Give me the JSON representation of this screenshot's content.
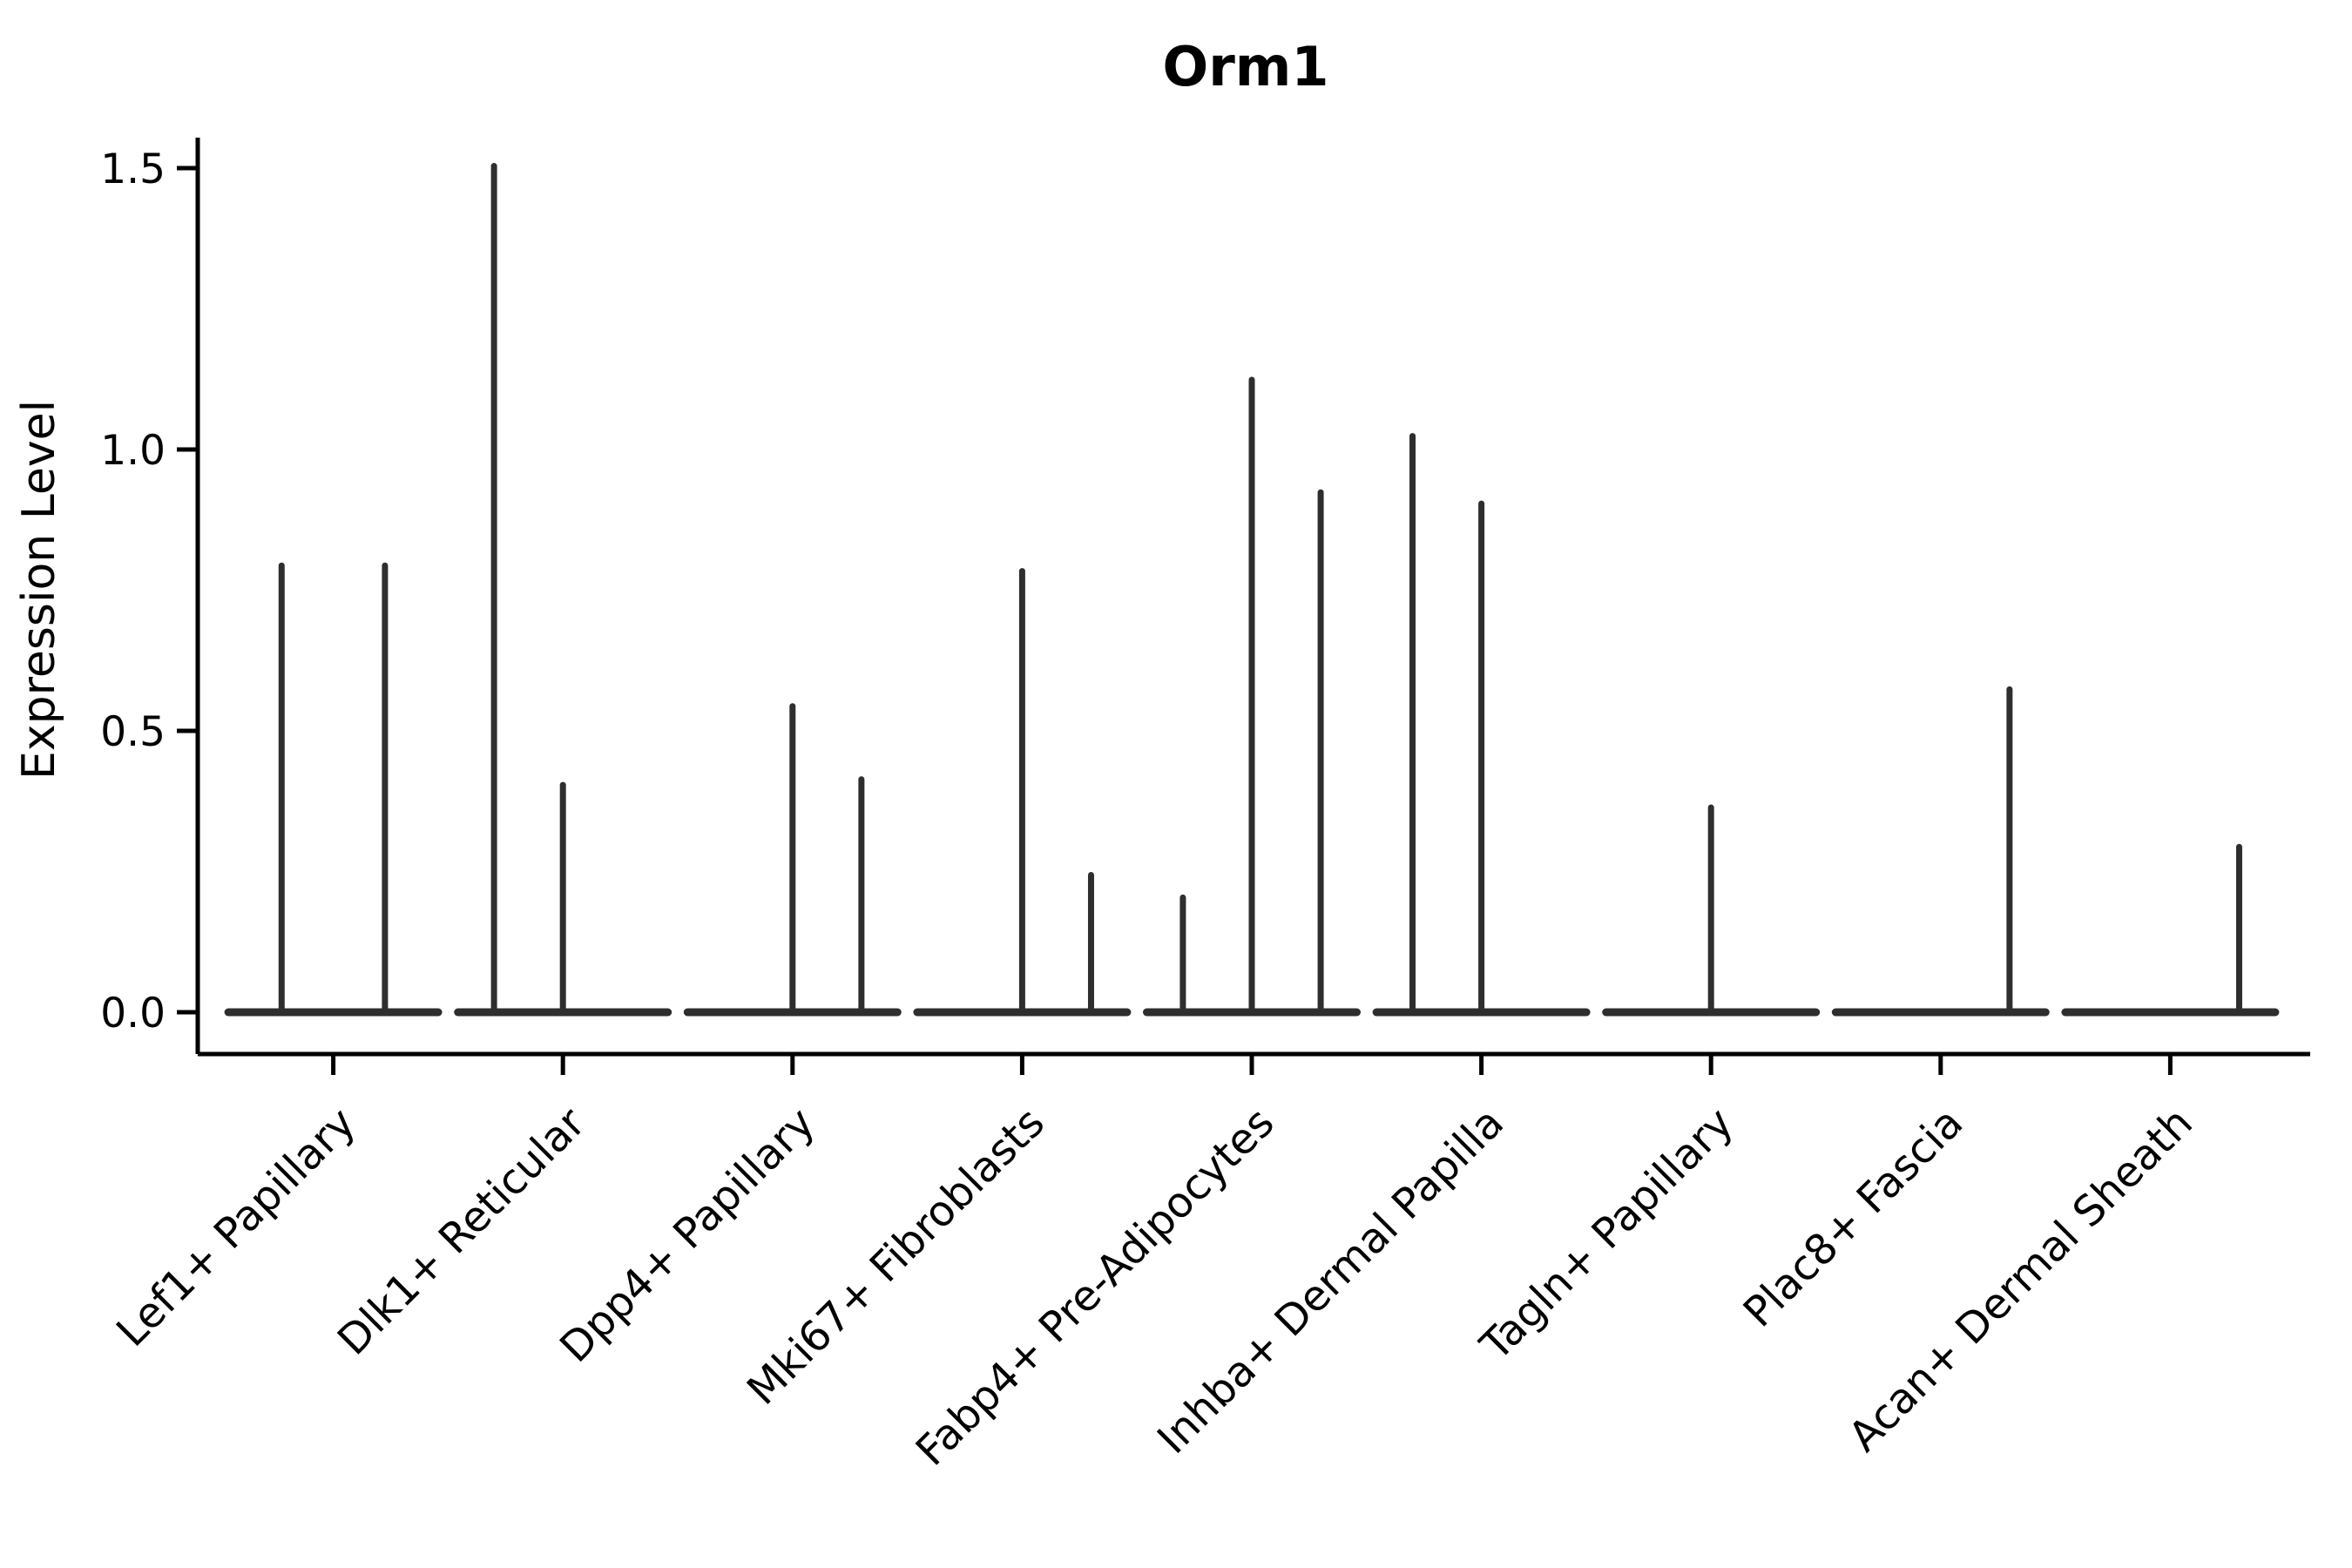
{
  "title": "Orm1",
  "chart_data": {
    "type": "violin",
    "title": "Orm1",
    "subtitle": "",
    "xlabel": "",
    "ylabel": "Expression Level",
    "ylim": [
      -0.08,
      1.57
    ],
    "yticks": [
      0.0,
      0.5,
      1.0,
      1.5
    ],
    "ytick_labels": [
      "0.0",
      "0.5",
      "1.0",
      "1.5"
    ],
    "xtick_rotation_deg": 45,
    "grid": "off",
    "legend_position": "none",
    "line_color": "#2e2e2e",
    "background_color": "#ffffff",
    "categories": [
      "Lef1+ Papillary",
      "Dlk1+ Reticular",
      "Dpp4+ Papillary",
      "Mki67+ Fibroblasts",
      "Fabp4+ Pre-Adipocytes",
      "Inhba+ Dermal Papilla",
      "Tagln+ Papillary",
      "Plac8+ Fascia",
      "Acan+ Dermal Sheath"
    ],
    "violins": [
      {
        "category": "Lef1+ Papillary",
        "spikes": [
          {
            "offset": -0.225,
            "peak": 0.8
          },
          {
            "offset": 0.225,
            "peak": 0.8
          }
        ]
      },
      {
        "category": "Dlk1+ Reticular",
        "spikes": [
          {
            "offset": -0.3,
            "peak": 1.51
          },
          {
            "offset": 0.0,
            "peak": 0.41
          }
        ]
      },
      {
        "category": "Dpp4+ Papillary",
        "spikes": [
          {
            "offset": 0.0,
            "peak": 0.55
          },
          {
            "offset": 0.3,
            "peak": 0.42
          }
        ]
      },
      {
        "category": "Mki67+ Fibroblasts",
        "spikes": [
          {
            "offset": 0.0,
            "peak": 0.79
          },
          {
            "offset": 0.3,
            "peak": 0.25
          }
        ]
      },
      {
        "category": "Fabp4+ Pre-Adipocytes",
        "spikes": [
          {
            "offset": -0.3,
            "peak": 0.21
          },
          {
            "offset": 0.0,
            "peak": 1.13
          },
          {
            "offset": 0.3,
            "peak": 0.93
          }
        ]
      },
      {
        "category": "Inhba+ Dermal Papilla",
        "spikes": [
          {
            "offset": -0.3,
            "peak": 1.03
          },
          {
            "offset": 0.0,
            "peak": 0.91
          }
        ]
      },
      {
        "category": "Tagln+ Papillary",
        "spikes": [
          {
            "offset": 0.0,
            "peak": 0.37
          }
        ]
      },
      {
        "category": "Plac8+ Fascia",
        "spikes": [
          {
            "offset": 0.3,
            "peak": 0.58
          }
        ]
      },
      {
        "category": "Acan+ Dermal Sheath",
        "spikes": [
          {
            "offset": 0.3,
            "peak": 0.3
          }
        ]
      }
    ],
    "baseline_value": 0.0
  }
}
